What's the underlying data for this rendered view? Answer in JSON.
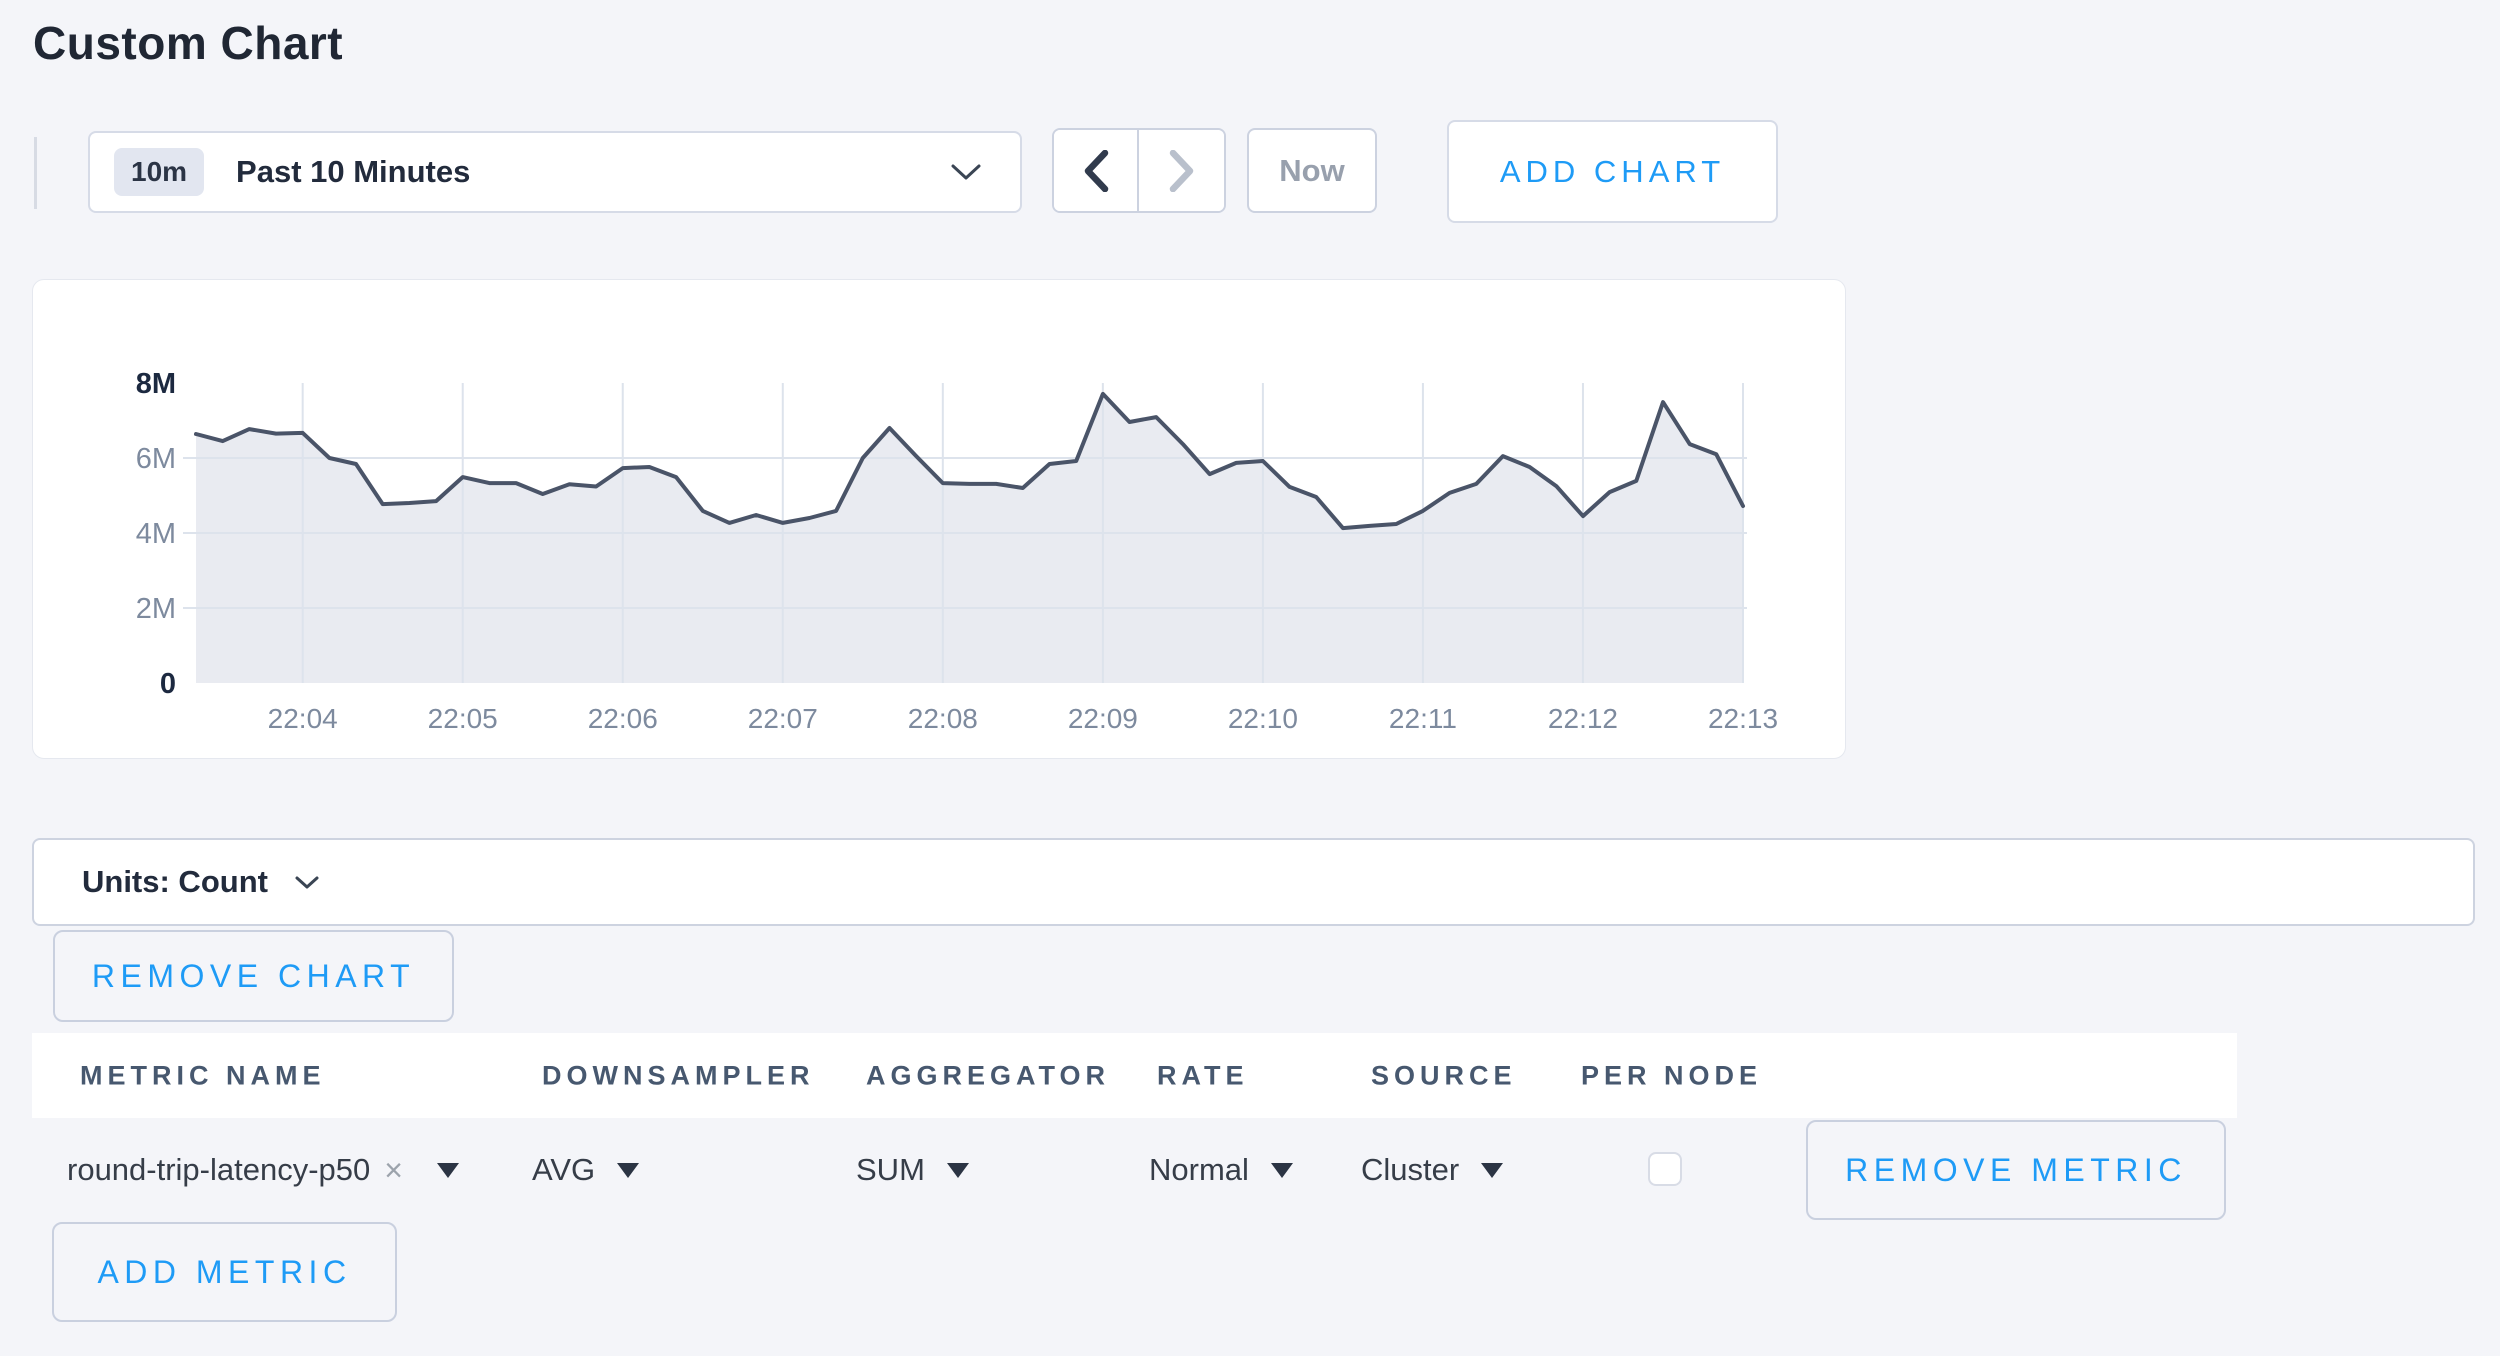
{
  "page": {
    "title": "Custom Chart"
  },
  "toolbar": {
    "range_badge": "10m",
    "range_label": "Past 10 Minutes",
    "now_label": "Now",
    "add_chart_label": "ADD CHART"
  },
  "units": {
    "label": "Units: Count"
  },
  "chart_actions": {
    "remove_chart_label": "REMOVE CHART"
  },
  "metrics_table": {
    "columns": [
      "METRIC NAME",
      "DOWNSAMPLER",
      "AGGREGATOR",
      "RATE",
      "SOURCE",
      "PER NODE"
    ],
    "rows": [
      {
        "metric_name": "round-trip-latency-p50",
        "remove_chip_symbol": "×",
        "downsampler": "AVG",
        "aggregator": "SUM",
        "rate": "Normal",
        "source": "Cluster",
        "per_node_checked": false,
        "remove_label": "REMOVE METRIC"
      }
    ],
    "add_metric_label": "ADD METRIC"
  },
  "colors": {
    "accent_blue": "#1e9bf6",
    "chart_line": "#4a5468",
    "chart_fill": "#e9ebf1",
    "grid_line": "#dde3ec",
    "axis_label_muted": "#7d8a9e",
    "axis_label_strong": "#1c2940",
    "page_background": "#f4f5f9"
  },
  "chart_data": {
    "type": "area",
    "title": "",
    "xlabel": "",
    "ylabel": "",
    "unit": "Count",
    "ylim_millions": [
      0,
      8
    ],
    "grid": true,
    "legend_position": "none",
    "y_ticks": [
      {
        "label": "8M",
        "value_millions": 8,
        "emphasized": true
      },
      {
        "label": "6M",
        "value_millions": 6,
        "emphasized": false
      },
      {
        "label": "4M",
        "value_millions": 4,
        "emphasized": false
      },
      {
        "label": "2M",
        "value_millions": 2,
        "emphasized": false
      },
      {
        "label": "0",
        "value_millions": 0,
        "emphasized": true
      }
    ],
    "h_gridlines_millions": [
      6,
      4,
      2
    ],
    "x_ticks": [
      {
        "label": "22:04",
        "index": 4
      },
      {
        "label": "22:05",
        "index": 10
      },
      {
        "label": "22:06",
        "index": 16
      },
      {
        "label": "22:07",
        "index": 22
      },
      {
        "label": "22:08",
        "index": 28
      },
      {
        "label": "22:09",
        "index": 34
      },
      {
        "label": "22:10",
        "index": 40
      },
      {
        "label": "22:11",
        "index": 46
      },
      {
        "label": "22:12",
        "index": 52
      },
      {
        "label": "22:13",
        "index": 58
      }
    ],
    "series": [
      {
        "name": "round-trip-latency-p50",
        "values_millions": [
          6.64,
          6.45,
          6.77,
          6.65,
          6.67,
          6.0,
          5.84,
          4.77,
          4.8,
          4.85,
          5.49,
          5.33,
          5.33,
          5.04,
          5.3,
          5.24,
          5.73,
          5.76,
          5.49,
          4.59,
          4.27,
          4.48,
          4.27,
          4.4,
          4.59,
          6.0,
          6.8,
          6.05,
          5.33,
          5.31,
          5.31,
          5.2,
          5.84,
          5.92,
          7.71,
          6.96,
          7.09,
          6.37,
          5.57,
          5.87,
          5.92,
          5.23,
          4.96,
          4.13,
          4.19,
          4.24,
          4.59,
          5.07,
          5.31,
          6.05,
          5.76,
          5.25,
          4.45,
          5.09,
          5.39,
          7.49,
          6.37,
          6.1,
          4.72
        ]
      }
    ]
  }
}
